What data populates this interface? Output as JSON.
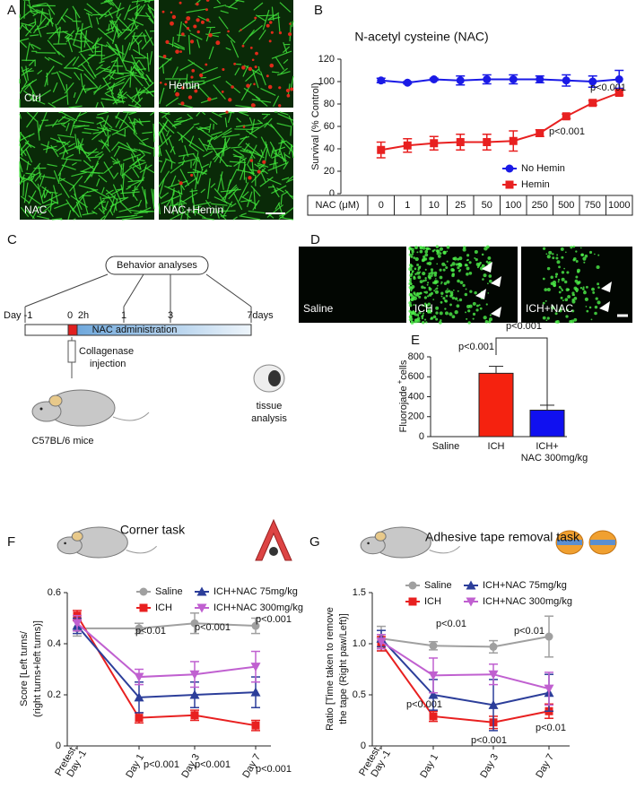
{
  "panel_labels": [
    "A",
    "B",
    "C",
    "D",
    "E",
    "F",
    "G"
  ],
  "panel_a": {
    "labels": [
      "Ctrl",
      "Hemin",
      "NAC",
      "NAC+Hemin"
    ]
  },
  "panel_c": {
    "header": "Behavior analyses",
    "timeline_labels": [
      "Day -1",
      "0",
      "2h",
      "1",
      "3",
      "7days"
    ],
    "bar_label": "NAC administration",
    "injection": [
      "Collagenase",
      "injection"
    ],
    "mouse": "C57BL/6 mice",
    "tissue": [
      "tissue",
      "analysis"
    ]
  },
  "panel_d": {
    "labels": [
      "Saline",
      "ICH",
      "ICH+NAC"
    ]
  },
  "chart_data": [
    {
      "type": "line",
      "title": "N-acetyl cysteine (NAC)",
      "y_label": [
        "Survival (% Control)"
      ],
      "x_label": "NAC (μM)",
      "categories": [
        "0",
        "1",
        "10",
        "25",
        "50",
        "100",
        "250",
        "500",
        "750",
        "1000"
      ],
      "series": [
        {
          "name": "No Hemin",
          "color": "#1a1ae6",
          "marker": "circle",
          "values": [
            101,
            99,
            102,
            101,
            102,
            102,
            102,
            101,
            100,
            102
          ],
          "errors": [
            2,
            1,
            1,
            4,
            4,
            4,
            3,
            5,
            5,
            8
          ]
        },
        {
          "name": "Hemin",
          "color": "#e82020",
          "marker": "square",
          "values": [
            39,
            43,
            45,
            46,
            46,
            47,
            54,
            69,
            81,
            90
          ],
          "errors": [
            7,
            6,
            6,
            7,
            7,
            9,
            3,
            2,
            2,
            2
          ]
        }
      ],
      "ylim": [
        0,
        120
      ],
      "yticks": [
        0,
        20,
        40,
        60,
        80,
        100,
        120
      ],
      "legend": "lower right",
      "annotations": [
        "p<0.001",
        "p<0.001"
      ]
    },
    {
      "type": "bar",
      "y_label": [
        "Fluorojade",
        "+",
        "cells"
      ],
      "categories": [
        [
          "Saline"
        ],
        [
          "ICH"
        ],
        [
          "ICH+",
          "NAC 300mg/kg"
        ]
      ],
      "values": [
        0,
        635,
        265
      ],
      "errors": [
        0,
        70,
        50
      ],
      "colors": [
        "#ffffff",
        "#f5220f",
        "#1010f0"
      ],
      "ylim": [
        0,
        800
      ],
      "yticks": [
        0,
        200,
        400,
        600,
        800
      ],
      "annotations": [
        "p<0.001",
        "p<0.001"
      ]
    },
    {
      "type": "line",
      "title": "Corner task",
      "y_label": [
        "Score [Left turns/",
        "(right turns+left turns)]"
      ],
      "categories": [
        "Pretest:\nDay -1",
        "Day 1",
        "Day 3",
        "Day 7"
      ],
      "series": [
        {
          "name": "Saline",
          "color": "#a0a0a0",
          "marker": "circle",
          "values": [
            0.46,
            0.46,
            0.48,
            0.47
          ],
          "errors": [
            0.03,
            0.02,
            0.04,
            0.03
          ]
        },
        {
          "name": "ICH",
          "color": "#e82020",
          "marker": "square",
          "values": [
            0.51,
            0.11,
            0.12,
            0.08
          ],
          "errors": [
            0.02,
            0.02,
            0.02,
            0.02
          ]
        },
        {
          "name": "ICH+NAC 75mg/kg",
          "color": "#2c3e9a",
          "marker": "triangle-up",
          "values": [
            0.47,
            0.19,
            0.2,
            0.21
          ],
          "errors": [
            0.03,
            0.06,
            0.05,
            0.06
          ]
        },
        {
          "name": "ICH+NAC 300mg/kg",
          "color": "#c060d0",
          "marker": "triangle-down",
          "values": [
            0.48,
            0.27,
            0.28,
            0.31
          ],
          "errors": [
            0.03,
            0.03,
            0.05,
            0.06
          ]
        }
      ],
      "ylim": [
        0,
        0.6
      ],
      "yticks": [
        0,
        0.2,
        0.4,
        0.6
      ],
      "legend": "top",
      "annotations": [
        "p<0.01",
        "p<0.001",
        "p<0.001",
        "p<0.001",
        "p<0.001",
        "p<0.001"
      ]
    },
    {
      "type": "line",
      "title": "Adhesive tape removal task",
      "y_label": [
        "Ratio [Time taken to remove",
        "the tape (Right paw/Left)]"
      ],
      "categories": [
        "Pretest:\nDay -1",
        "Day 1",
        "Day 3",
        "Day 7"
      ],
      "series": [
        {
          "name": "Saline",
          "color": "#a0a0a0",
          "marker": "circle",
          "values": [
            1.05,
            0.98,
            0.97,
            1.07
          ],
          "errors": [
            0.12,
            0.04,
            0.06,
            0.2
          ]
        },
        {
          "name": "ICH",
          "color": "#e82020",
          "marker": "square",
          "values": [
            1.0,
            0.29,
            0.23,
            0.34
          ],
          "errors": [
            0.07,
            0.05,
            0.06,
            0.07
          ]
        },
        {
          "name": "ICH+NAC 75mg/kg",
          "color": "#2c3e9a",
          "marker": "triangle-up",
          "values": [
            1.05,
            0.5,
            0.4,
            0.52
          ],
          "errors": [
            0.08,
            0.15,
            0.25,
            0.18
          ]
        },
        {
          "name": "ICH+NAC 300mg/kg",
          "color": "#c060d0",
          "marker": "triangle-down",
          "values": [
            1.02,
            0.69,
            0.7,
            0.56
          ],
          "errors": [
            0.07,
            0.17,
            0.1,
            0.16
          ]
        }
      ],
      "ylim": [
        0,
        1.5
      ],
      "yticks": [
        0,
        0.5,
        {
          "value": 1,
          "label": "1.0"
        },
        1.5
      ],
      "legend": "top",
      "annotations": [
        "p<0.01",
        "p<0.01",
        "p<0.001",
        "p<0.001",
        "p<0.01"
      ]
    }
  ]
}
